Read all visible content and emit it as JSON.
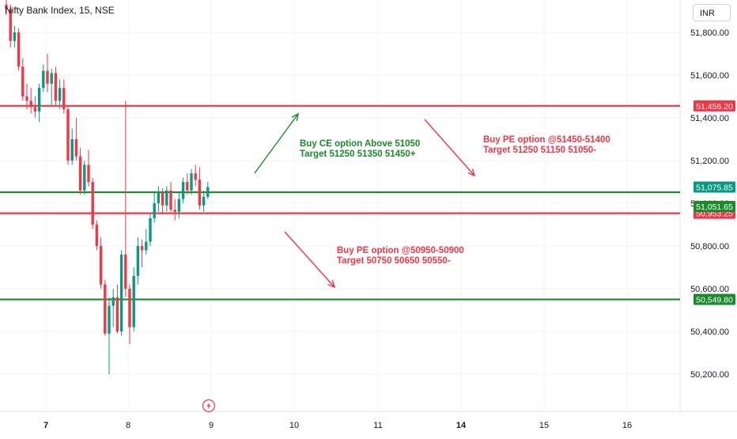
{
  "header": {
    "symbol_title": "Nifty Bank Index, 15, NSE",
    "currency": "INR"
  },
  "colors": {
    "up": "#089981",
    "down": "#f23645",
    "red_line": "#f23645",
    "green_line": "#1b8a2a",
    "green_text": "#1b8a2a",
    "red_text": "#f23645"
  },
  "chart_data": {
    "type": "candlestick",
    "y_axis": {
      "ticks": [
        51800,
        51600,
        51400,
        51200,
        51000,
        50800,
        50600,
        50400,
        50200
      ],
      "tick_labels": [
        "51,800.00",
        "51,600.00",
        "51,400.00",
        "51,200.00",
        "51,000.00",
        "50,800.00",
        "50,600.00",
        "50,400.00",
        "50,200.00"
      ],
      "ylim": [
        50100,
        51960
      ]
    },
    "x_axis": {
      "ticks": [
        "7",
        "8",
        "9",
        "10",
        "11",
        "14",
        "15",
        "16"
      ],
      "bold_ticks": [
        "7",
        "14"
      ]
    },
    "horizontal_levels": [
      {
        "value": 51456.2,
        "label": "51,456.20",
        "color": "red"
      },
      {
        "value": 51051.65,
        "label": "51,051.65",
        "color": "green"
      },
      {
        "value": 50953.25,
        "label": "50,953.25",
        "color": "red"
      },
      {
        "value": 50549.8,
        "label": "50,549.80",
        "color": "green"
      }
    ],
    "last_price": {
      "value": 51075.85,
      "label": "51,075.85"
    },
    "annotations": [
      {
        "lines": [
          "Buy CE option Above 51050",
          "Target 51250 51350 51450+"
        ],
        "color": "green"
      },
      {
        "lines": [
          "Buy PE option @51450-51400",
          "Target 51250 51150 51050-"
        ],
        "color": "red"
      },
      {
        "lines": [
          "Buy PE option @50950-50900",
          "Target 50750 50650 50550-"
        ],
        "color": "red"
      }
    ],
    "candles": [
      {
        "o": 51930,
        "h": 51960,
        "l": 51880,
        "c": 51910
      },
      {
        "o": 51910,
        "h": 51930,
        "l": 51730,
        "c": 51760
      },
      {
        "o": 51760,
        "h": 51830,
        "l": 51730,
        "c": 51800
      },
      {
        "o": 51800,
        "h": 51820,
        "l": 51620,
        "c": 51640
      },
      {
        "o": 51640,
        "h": 51680,
        "l": 51480,
        "c": 51500
      },
      {
        "o": 51500,
        "h": 51560,
        "l": 51440,
        "c": 51480
      },
      {
        "o": 51480,
        "h": 51540,
        "l": 51420,
        "c": 51450
      },
      {
        "o": 51450,
        "h": 51500,
        "l": 51400,
        "c": 51430
      },
      {
        "o": 51430,
        "h": 51560,
        "l": 51380,
        "c": 51540
      },
      {
        "o": 51540,
        "h": 51650,
        "l": 51520,
        "c": 51620
      },
      {
        "o": 51620,
        "h": 51700,
        "l": 51520,
        "c": 51560
      },
      {
        "o": 51560,
        "h": 51630,
        "l": 51460,
        "c": 51610
      },
      {
        "o": 51610,
        "h": 51640,
        "l": 51460,
        "c": 51480
      },
      {
        "o": 51480,
        "h": 51580,
        "l": 51440,
        "c": 51540
      },
      {
        "o": 51540,
        "h": 51580,
        "l": 51420,
        "c": 51440
      },
      {
        "o": 51440,
        "h": 51450,
        "l": 51180,
        "c": 51200
      },
      {
        "o": 51200,
        "h": 51350,
        "l": 51180,
        "c": 51300
      },
      {
        "o": 51300,
        "h": 51400,
        "l": 51200,
        "c": 51220
      },
      {
        "o": 51220,
        "h": 51260,
        "l": 51040,
        "c": 51060
      },
      {
        "o": 51060,
        "h": 51200,
        "l": 51040,
        "c": 51180
      },
      {
        "o": 51180,
        "h": 51250,
        "l": 51080,
        "c": 51100
      },
      {
        "o": 51100,
        "h": 51120,
        "l": 50880,
        "c": 50900
      },
      {
        "o": 50900,
        "h": 50920,
        "l": 50780,
        "c": 50800
      },
      {
        "o": 50800,
        "h": 50840,
        "l": 50600,
        "c": 50620
      },
      {
        "o": 50620,
        "h": 50640,
        "l": 50380,
        "c": 50390
      },
      {
        "o": 50390,
        "h": 50560,
        "l": 50200,
        "c": 50520
      },
      {
        "o": 50520,
        "h": 50600,
        "l": 50420,
        "c": 50560
      },
      {
        "o": 50560,
        "h": 50620,
        "l": 50390,
        "c": 50400
      },
      {
        "o": 50400,
        "h": 50780,
        "l": 50380,
        "c": 50760
      },
      {
        "o": 50760,
        "h": 51480,
        "l": 50560,
        "c": 50600
      },
      {
        "o": 50600,
        "h": 50620,
        "l": 50340,
        "c": 50420
      },
      {
        "o": 50420,
        "h": 50700,
        "l": 50400,
        "c": 50660
      },
      {
        "o": 50660,
        "h": 50840,
        "l": 50620,
        "c": 50800
      },
      {
        "o": 50800,
        "h": 50830,
        "l": 50700,
        "c": 50780
      },
      {
        "o": 50780,
        "h": 50880,
        "l": 50760,
        "c": 50820
      },
      {
        "o": 50820,
        "h": 50950,
        "l": 50800,
        "c": 50930
      },
      {
        "o": 50930,
        "h": 51050,
        "l": 50910,
        "c": 51000
      },
      {
        "o": 51000,
        "h": 51080,
        "l": 50960,
        "c": 51050
      },
      {
        "o": 51050,
        "h": 51070,
        "l": 50950,
        "c": 50990
      },
      {
        "o": 50990,
        "h": 51080,
        "l": 50960,
        "c": 51060
      },
      {
        "o": 51060,
        "h": 51100,
        "l": 50960,
        "c": 50970
      },
      {
        "o": 50970,
        "h": 51020,
        "l": 50920,
        "c": 50960
      },
      {
        "o": 50960,
        "h": 51050,
        "l": 50930,
        "c": 51020
      },
      {
        "o": 51020,
        "h": 51120,
        "l": 51000,
        "c": 51100
      },
      {
        "o": 51100,
        "h": 51140,
        "l": 51040,
        "c": 51060
      },
      {
        "o": 51060,
        "h": 51160,
        "l": 51040,
        "c": 51140
      },
      {
        "o": 51140,
        "h": 51180,
        "l": 51080,
        "c": 51110
      },
      {
        "o": 51110,
        "h": 51170,
        "l": 50970,
        "c": 50990
      },
      {
        "o": 50990,
        "h": 51060,
        "l": 50960,
        "c": 51030
      },
      {
        "o": 51030,
        "h": 51100,
        "l": 51020,
        "c": 51076
      }
    ]
  }
}
